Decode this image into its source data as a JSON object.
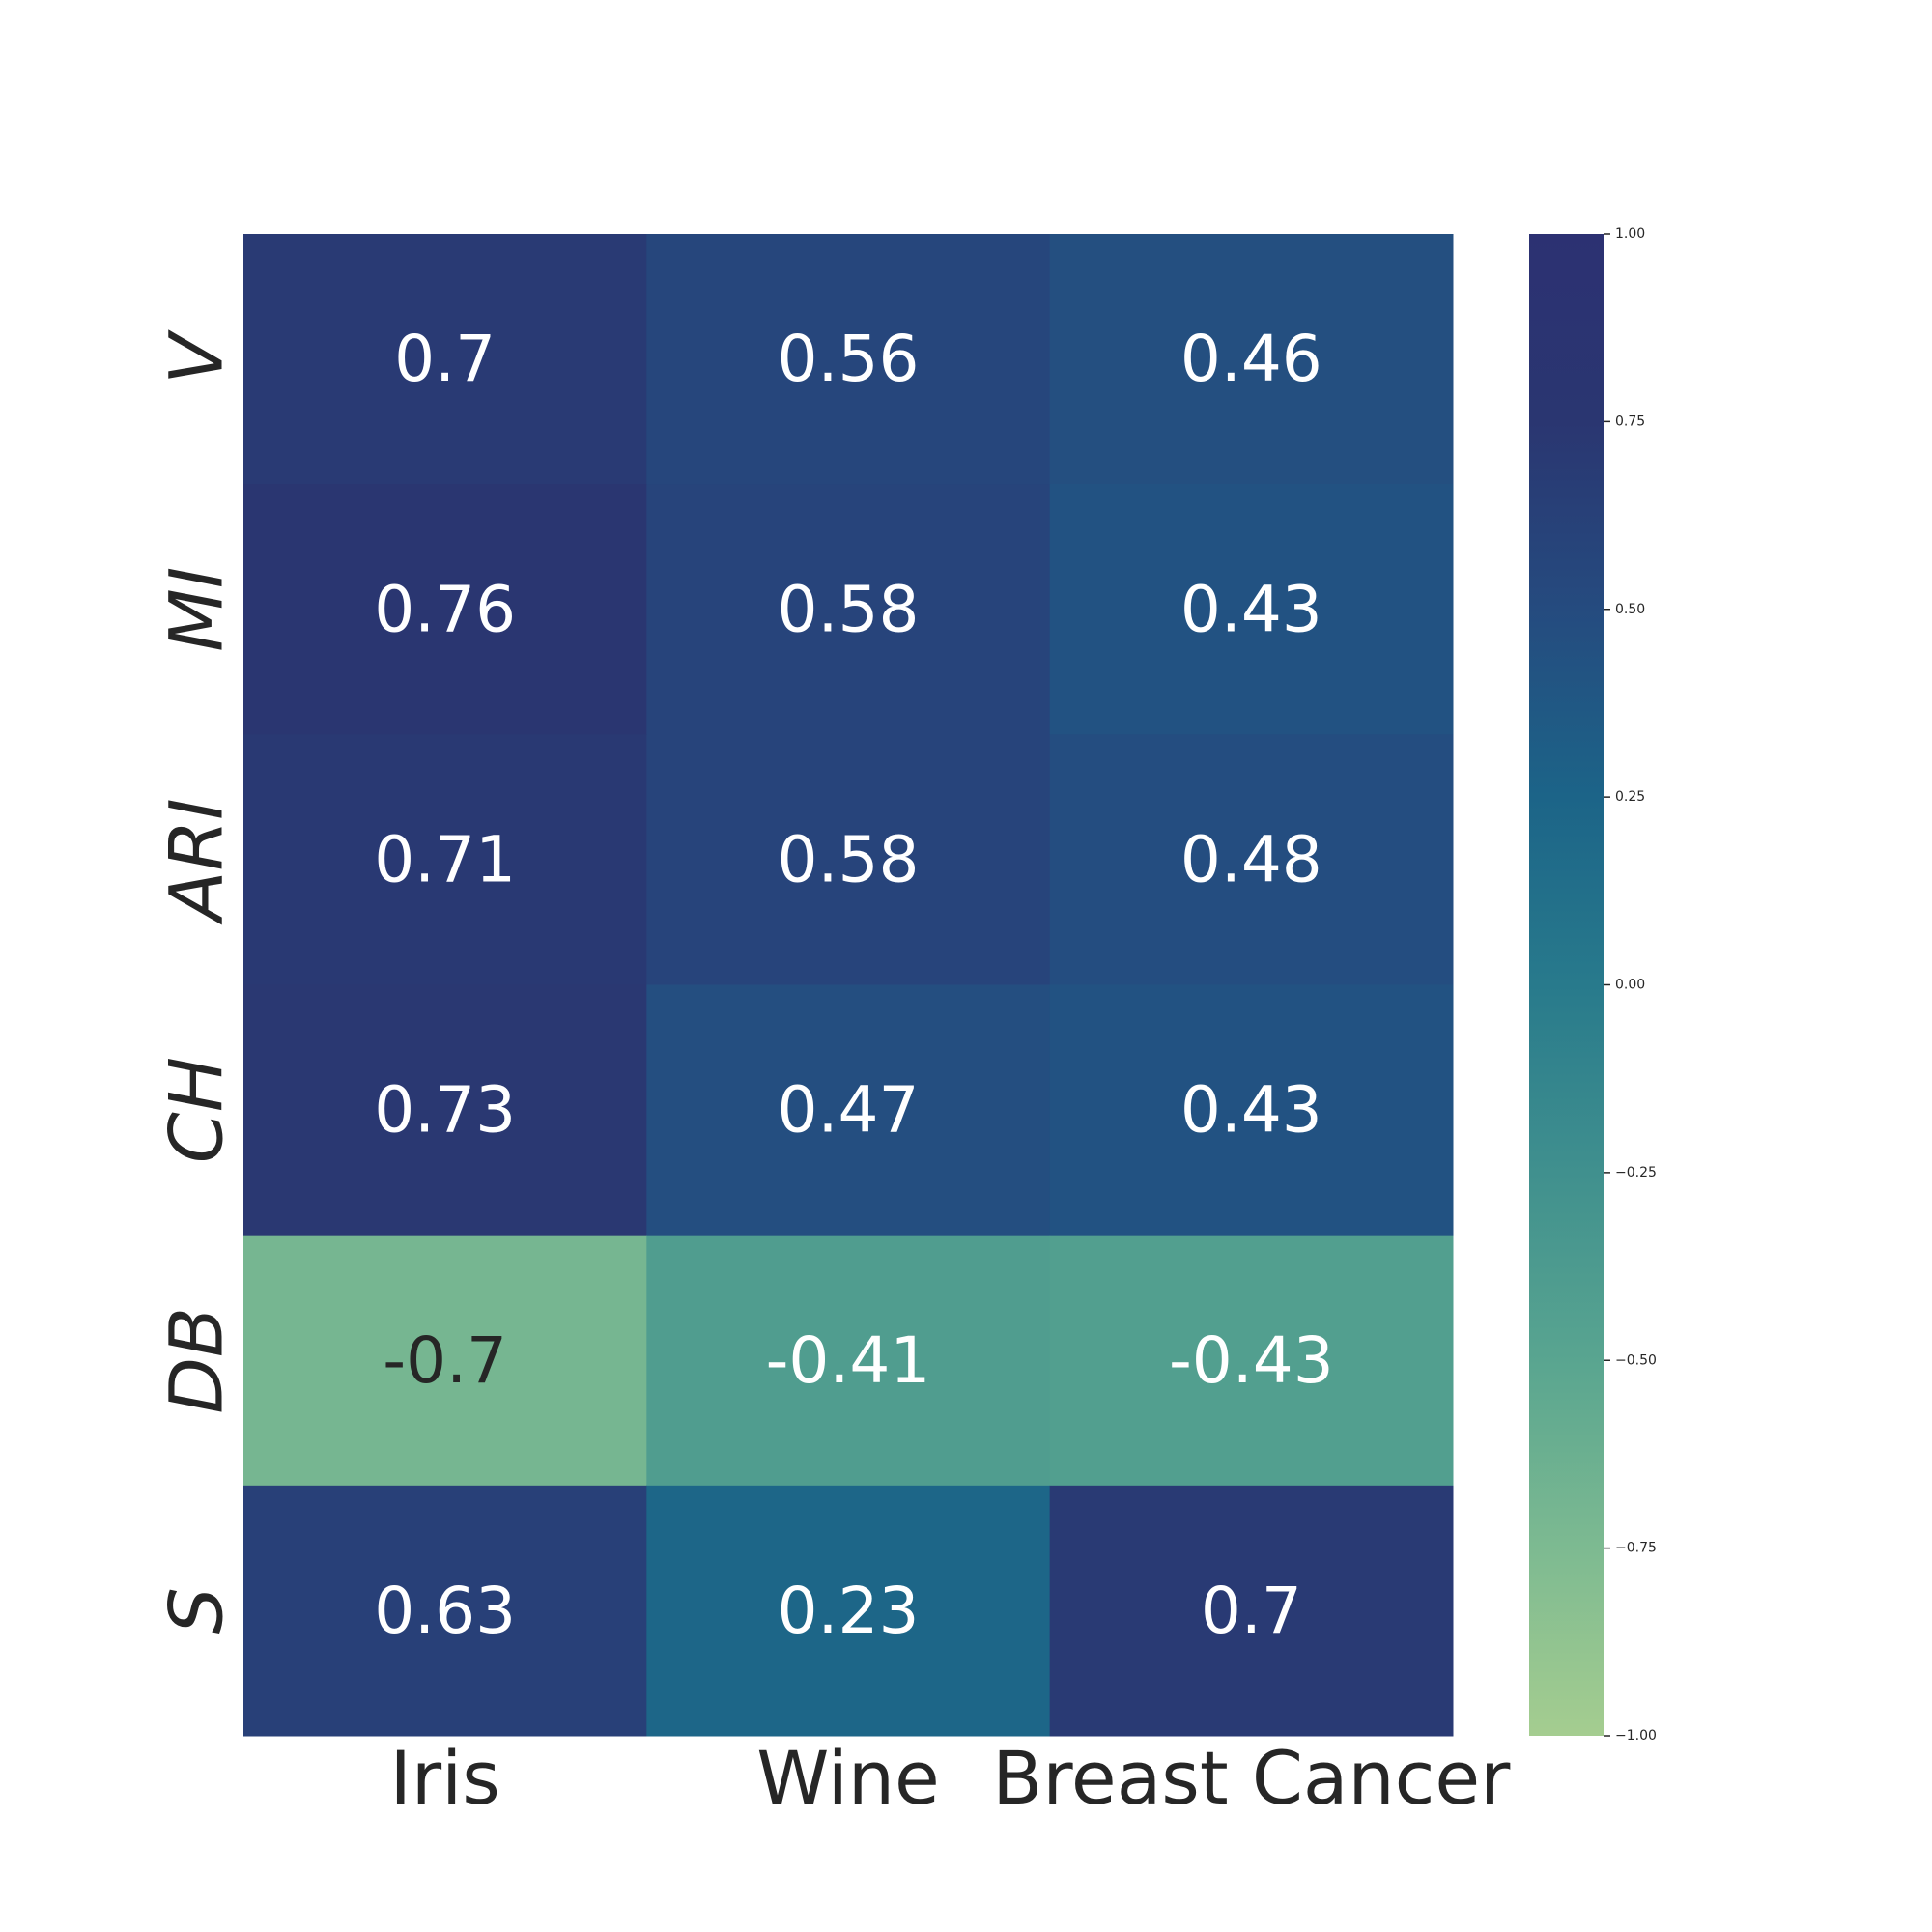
{
  "chart_data": {
    "type": "heatmap",
    "columns": [
      "Iris",
      "Wine",
      "Breast Cancer"
    ],
    "rows": [
      "V",
      "MI",
      "ARI",
      "CH",
      "DB",
      "S"
    ],
    "values": [
      [
        0.7,
        0.56,
        0.46
      ],
      [
        0.76,
        0.58,
        0.43
      ],
      [
        0.71,
        0.58,
        0.48
      ],
      [
        0.73,
        0.47,
        0.43
      ],
      [
        -0.7,
        -0.41,
        -0.43
      ],
      [
        0.63,
        0.23,
        0.7
      ]
    ],
    "cell_labels": [
      [
        "0.7",
        "0.56",
        "0.46"
      ],
      [
        "0.76",
        "0.58",
        "0.43"
      ],
      [
        "0.71",
        "0.58",
        "0.48"
      ],
      [
        "0.73",
        "0.47",
        "0.43"
      ],
      [
        "-0.7",
        "-0.41",
        "-0.43"
      ],
      [
        "0.63",
        "0.23",
        "0.7"
      ]
    ],
    "colorbar": {
      "range": [
        -1.0,
        1.0
      ],
      "ticks": [
        1.0,
        0.75,
        0.5,
        0.25,
        0.0,
        -0.25,
        -0.5,
        -0.75,
        -1.0
      ],
      "tick_labels": [
        "1.00",
        "0.75",
        "0.50",
        "0.25",
        "0.00",
        "−0.25",
        "−0.50",
        "−0.75",
        "−1.00"
      ],
      "colormap": "crest",
      "color_stops": [
        "#a5cd90",
        "#7dba91",
        "#59a590",
        "#40908e",
        "#287a8c",
        "#1c6488",
        "#254b7f",
        "#2a3671",
        "#2c3172"
      ]
    },
    "text_colors": {
      "light": "#ffffff",
      "dark": "#262626"
    },
    "xlabel": "",
    "ylabel": "",
    "title": ""
  }
}
